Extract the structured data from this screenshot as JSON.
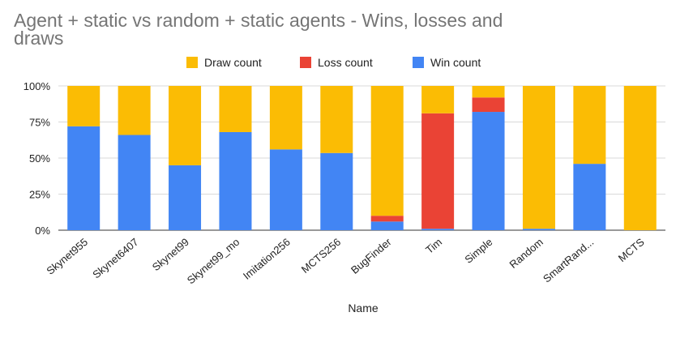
{
  "chart_data": {
    "type": "bar",
    "stacked": "percent",
    "title": "Agent + static vs random + static agents - Wins, losses and draws",
    "xlabel": "Name",
    "ylabel": "",
    "ylim": [
      0,
      100
    ],
    "yticks": [
      "0%",
      "25%",
      "50%",
      "75%",
      "100%"
    ],
    "grid": true,
    "legend_position": "top",
    "categories": [
      "Skynet955",
      "Skynet6407",
      "Skynet99",
      "Skynet99_mo",
      "Imitation256",
      "MCTS256",
      "BugFinder",
      "Tim",
      "Simple",
      "Random",
      "SmartRand...",
      "MCTS"
    ],
    "series": [
      {
        "name": "Win count",
        "color": "#4285f4",
        "values": [
          72,
          66,
          45,
          68,
          56,
          53.5,
          6,
          1,
          82,
          1,
          46,
          0
        ]
      },
      {
        "name": "Loss count",
        "color": "#ea4335",
        "values": [
          0,
          0,
          0,
          0,
          0,
          0,
          4,
          80,
          10,
          0,
          0,
          0
        ]
      },
      {
        "name": "Draw count",
        "color": "#fbbc04",
        "values": [
          28,
          34,
          55,
          32,
          44,
          46.5,
          90,
          19,
          8,
          99,
          54,
          100
        ]
      }
    ],
    "legend_order": [
      "Draw count",
      "Loss count",
      "Win count"
    ]
  }
}
